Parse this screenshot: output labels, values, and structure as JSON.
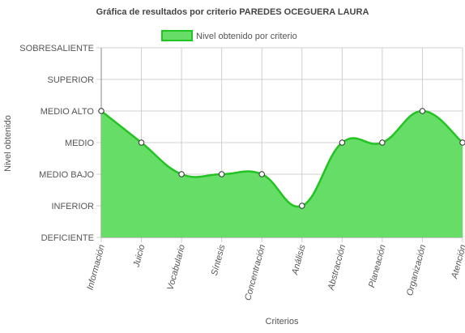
{
  "chart_data": {
    "type": "area",
    "title": "Gráfica de resultados por criterio PAREDES OCEGUERA LAURA",
    "xlabel": "Criterios",
    "ylabel": "Nivel obtenido",
    "y_levels": [
      "DEFICIENTE",
      "INFERIOR",
      "MEDIO BAJO",
      "MEDIO",
      "MEDIO ALTO",
      "SUPERIOR",
      "SOBRESALIENTE"
    ],
    "ylim": [
      0,
      6
    ],
    "categories": [
      "Información",
      "Juicio",
      "Vocabulario",
      "Síntesis",
      "Concentración",
      "Análisis",
      "Abstracción",
      "Planeación",
      "Organización",
      "Atención"
    ],
    "series": [
      {
        "name": "Nivel obtenido por criterio",
        "values": [
          4,
          3,
          2,
          2,
          2,
          1,
          3,
          3,
          4,
          3
        ]
      }
    ],
    "legend_position": "top-center",
    "grid": true
  },
  "colors": {
    "fill": "#66dd66",
    "line": "#22c422",
    "grid": "#d0d0d0",
    "axis": "#888888",
    "text": "#555555",
    "title": "#444444"
  }
}
